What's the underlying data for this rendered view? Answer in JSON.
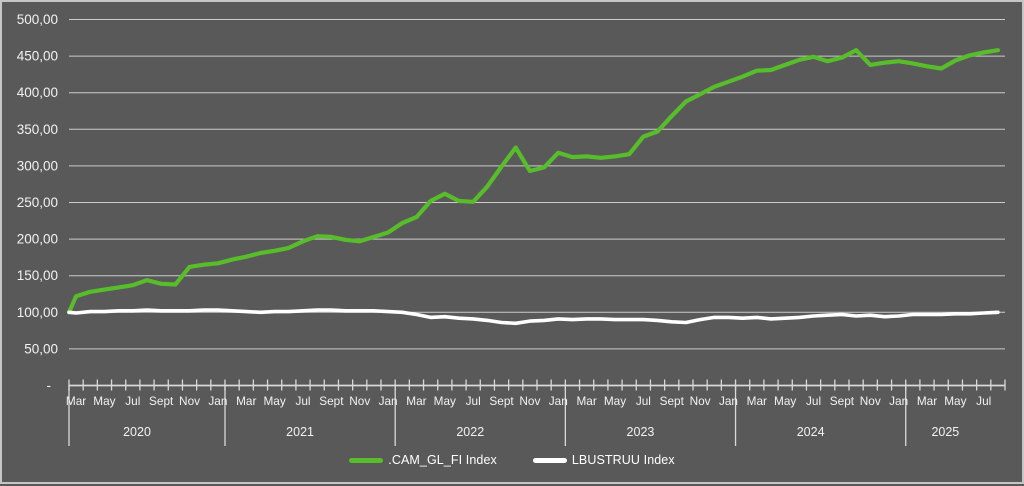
{
  "chart_data": {
    "type": "line",
    "title": "",
    "background_color": "#595959",
    "grid": true,
    "grid_color": "#cccccc",
    "axis_color": "#d9d9d9",
    "text_color": "#f2f2f2",
    "y_axis": {
      "min": 0,
      "max": 500,
      "tick_step": 50,
      "tick_values": [
        500,
        450,
        400,
        350,
        300,
        250,
        200,
        150,
        100,
        50,
        0
      ],
      "tick_labels": [
        "500,00",
        "450,00",
        "400,00",
        "350,00",
        "300,00",
        "250,00",
        "200,00",
        "150,00",
        "100,00",
        "50,00",
        "-"
      ]
    },
    "x_axis": {
      "unit": "month",
      "sections": [
        {
          "year": "2020",
          "month_labels": [
            "Mar",
            "May",
            "Jul",
            "Sept",
            "Nov",
            "Jan"
          ],
          "n_slots": 11,
          "first_label_slot": 0
        },
        {
          "year": "2021",
          "month_labels": [
            "Mar",
            "May",
            "Jul",
            "Sept",
            "Nov",
            "Jan"
          ],
          "n_slots": 12,
          "first_label_slot": 1
        },
        {
          "year": "2022",
          "month_labels": [
            "Mar",
            "May",
            "Jul",
            "Sept",
            "Nov",
            "Jan"
          ],
          "n_slots": 12,
          "first_label_slot": 1
        },
        {
          "year": "2023",
          "month_labels": [
            "Mar",
            "May",
            "Jul",
            "Sept",
            "Nov",
            "Jan"
          ],
          "n_slots": 12,
          "first_label_slot": 1
        },
        {
          "year": "2024",
          "month_labels": [
            "Mar",
            "May",
            "Jul",
            "Sept",
            "Nov",
            "Jan"
          ],
          "n_slots": 12,
          "first_label_slot": 1
        },
        {
          "year": "2025",
          "month_labels": [
            "Mar",
            "May",
            "Jul"
          ],
          "n_slots": 7,
          "first_label_slot": 1
        }
      ]
    },
    "legend_position": "bottom",
    "series": [
      {
        "name": ".CAM_GL_FI Index",
        "color": "#58bd2a",
        "stroke_width": 4.2,
        "values": [
          100,
          122,
          128,
          131,
          134,
          137,
          144,
          139,
          138,
          162,
          165,
          167,
          172,
          176,
          181,
          184,
          188,
          197,
          204,
          203,
          199,
          197,
          203,
          209,
          222,
          230,
          252,
          262,
          252,
          251,
          272,
          299,
          325,
          293,
          298,
          318,
          312,
          313,
          311,
          313,
          316,
          340,
          347,
          368,
          388,
          398,
          408,
          415,
          422,
          430,
          431,
          438,
          445,
          449,
          443,
          448,
          458,
          438,
          441,
          443,
          440,
          436,
          433,
          444,
          451,
          455,
          458
        ]
      },
      {
        "name": "LBUSTRUU Index",
        "color": "#ffffff",
        "stroke_width": 3.6,
        "values": [
          100,
          99,
          101,
          101,
          102,
          102,
          103,
          102,
          102,
          102,
          103,
          103,
          102,
          101,
          100,
          101,
          101,
          102,
          103,
          103,
          102,
          102,
          102,
          101,
          100,
          97,
          93,
          94,
          92,
          91,
          89,
          86,
          85,
          88,
          89,
          91,
          90,
          91,
          91,
          90,
          90,
          90,
          89,
          87,
          86,
          90,
          93,
          93,
          92,
          93,
          91,
          92,
          93,
          95,
          96,
          97,
          95,
          96,
          94,
          95,
          97,
          97,
          97,
          98,
          98,
          99,
          100
        ]
      }
    ]
  },
  "legend": {
    "item1": ".CAM_GL_FI Index",
    "item2": "LBUSTRUU Index"
  }
}
